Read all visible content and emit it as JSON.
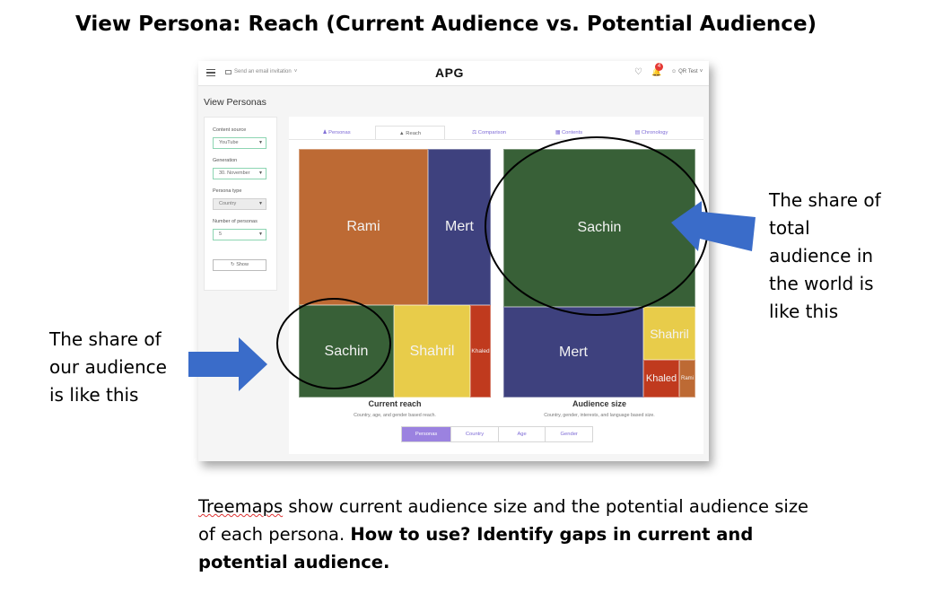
{
  "slide": {
    "title": "View Persona: Reach (Current Audience vs. Potential Audience)"
  },
  "app": {
    "invite_label": "Send an email invitation",
    "logo": "APG",
    "notification_count": "4",
    "user_label": "QR Test",
    "page_heading": "View Personas"
  },
  "filters": {
    "content_source_label": "Content source",
    "content_source_value": "YouTube",
    "generation_label": "Generation",
    "generation_value": "30. November",
    "persona_type_label": "Persona type",
    "persona_type_value": "Country",
    "number_label": "Number of personas",
    "number_value": "5",
    "show_button": "Show"
  },
  "tabs": [
    "Personas",
    "Reach",
    "Comparison",
    "Contents",
    "Chronology"
  ],
  "active_tab": "Reach",
  "charts": {
    "current": {
      "title": "Current reach",
      "subtitle": "Country, age, and gender based reach.",
      "cells": [
        "Rami",
        "Mert",
        "Sachin",
        "Shahril",
        "Khaled"
      ]
    },
    "potential": {
      "title": "Audience size",
      "subtitle": "Country, gender, interests, and language based size.",
      "cells": [
        "Sachin",
        "Mert",
        "Shahril",
        "Khaled",
        "Rami"
      ]
    }
  },
  "segment": [
    "Personas",
    "Country",
    "Age",
    "Gender"
  ],
  "colors": {
    "rami": "#bd6a34",
    "mert": "#3e417e",
    "sachin": "#386037",
    "shahril": "#e8cc4a",
    "khaled": "#c03a1e",
    "accent": "#9b82e0",
    "arrow": "#3a6cc9"
  },
  "annotations": {
    "right": [
      "The share of",
      "total",
      "audience in",
      "the world is",
      "like this"
    ],
    "left": [
      "The share of",
      "our audience",
      "is like this"
    ]
  },
  "bottom": {
    "word1": "Treemaps",
    "rest1": " show current audience size and the potential audience size of each persona. ",
    "bold": "How to use? Identify gaps in current and potential audience."
  }
}
